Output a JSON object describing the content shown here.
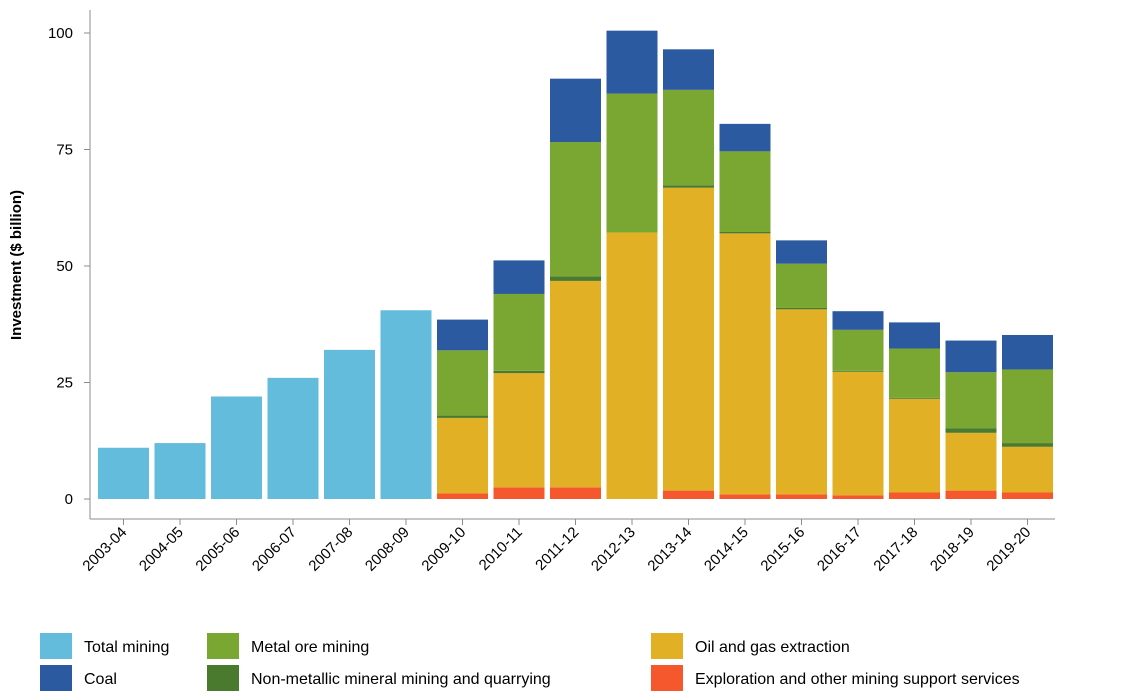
{
  "chart_data": {
    "type": "bar",
    "stacked": true,
    "title": "",
    "xlabel": "",
    "ylabel": "Investment ($ billion)",
    "ylim": [
      0,
      100
    ],
    "yticks": [
      "0",
      "25",
      "50",
      "75",
      "100"
    ],
    "grid": false,
    "legend_position": "bottom",
    "categories": [
      "2003-04",
      "2004-05",
      "2005-06",
      "2006-07",
      "2007-08",
      "2008-09",
      "2009-10",
      "2010-11",
      "2011-12",
      "2012-13",
      "2013-14",
      "2014-15",
      "2015-16",
      "2016-17",
      "2017-18",
      "2018-19",
      "2019-20"
    ],
    "series": [
      {
        "name": "Total mining",
        "color": "#63bcdc",
        "values": [
          11,
          12,
          22,
          26,
          32,
          40.5,
          0,
          0,
          0,
          0,
          0,
          0,
          0,
          0,
          0,
          0,
          0
        ]
      },
      {
        "name": "Exploration and other mining support services",
        "color": "#f5582d",
        "values": [
          0,
          0,
          0,
          0,
          0,
          0,
          1.2,
          2.5,
          2.5,
          0,
          1.8,
          1,
          1,
          0.8,
          1.4,
          1.8,
          1.4
        ]
      },
      {
        "name": "Oil and gas extraction",
        "color": "#e2b024",
        "values": [
          0,
          0,
          0,
          0,
          0,
          0,
          16.2,
          24.5,
          44.3,
          57.2,
          65,
          56,
          39.7,
          26.5,
          20.1,
          12.4,
          9.8
        ]
      },
      {
        "name": "Non-metallic mineral mining and quarrying",
        "color": "#4a7a2e",
        "values": [
          0,
          0,
          0,
          0,
          0,
          0,
          0.5,
          0.5,
          1,
          0,
          0.5,
          0.3,
          0.3,
          0.2,
          0.2,
          1,
          0.8
        ]
      },
      {
        "name": "Metal ore mining",
        "color": "#7aa632",
        "values": [
          0,
          0,
          0,
          0,
          0,
          0,
          14,
          16.5,
          28.8,
          29.8,
          20.5,
          17.3,
          9.5,
          8.8,
          10.6,
          12,
          15.8
        ]
      },
      {
        "name": "Coal",
        "color": "#2b5aa0",
        "values": [
          0,
          0,
          0,
          0,
          0,
          0,
          6.6,
          7.2,
          13.6,
          13.5,
          8.7,
          5.9,
          5,
          4,
          5.6,
          6.8,
          7.4
        ]
      }
    ],
    "legend": [
      {
        "name": "Total mining",
        "color": "#63bcdc"
      },
      {
        "name": "Coal",
        "color": "#2b5aa0"
      },
      {
        "name": "Metal ore mining",
        "color": "#7aa632"
      },
      {
        "name": "Non-metallic mineral mining and quarrying",
        "color": "#4a7a2e"
      },
      {
        "name": "Oil and gas extraction",
        "color": "#e2b024"
      },
      {
        "name": "Exploration and other mining support services",
        "color": "#f5582d"
      }
    ]
  }
}
